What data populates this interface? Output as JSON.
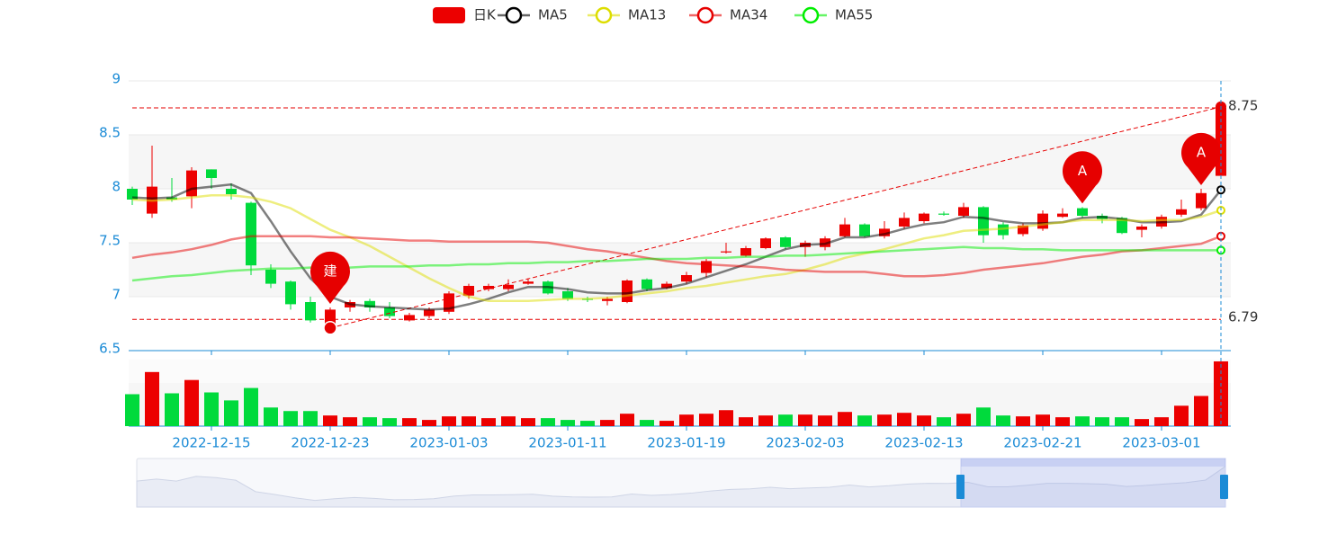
{
  "chart_data": {
    "type": "candlestick",
    "categories": [
      null,
      null,
      null,
      null,
      "2022-12-15",
      null,
      null,
      null,
      null,
      null,
      "2022-12-23",
      null,
      null,
      null,
      null,
      null,
      "2023-01-03",
      null,
      null,
      null,
      null,
      null,
      "2023-01-11",
      null,
      null,
      null,
      null,
      null,
      "2023-01-19",
      null,
      null,
      null,
      null,
      null,
      "2023-02-03",
      null,
      null,
      null,
      null,
      null,
      "2023-02-13",
      null,
      null,
      null,
      null,
      null,
      "2023-02-21",
      null,
      null,
      null,
      null,
      null,
      "2023-03-01",
      null,
      null,
      null
    ],
    "candles": {
      "name": "日K",
      "up_color": "#ec0000",
      "down_color": "#00da3c",
      "open": [
        8.0,
        7.77,
        7.92,
        7.93,
        8.18,
        8.0,
        7.87,
        7.25,
        7.14,
        6.95,
        6.71,
        6.9,
        6.96,
        6.9,
        6.78,
        6.82,
        6.86,
        7.01,
        7.07,
        7.07,
        7.12,
        7.14,
        7.05,
        6.98,
        6.96,
        6.95,
        7.16,
        7.08,
        7.14,
        7.22,
        7.41,
        7.38,
        7.45,
        7.55,
        7.46,
        7.46,
        7.56,
        7.67,
        7.56,
        7.65,
        7.7,
        7.77,
        7.75,
        7.83,
        7.67,
        7.58,
        7.63,
        7.74,
        7.82,
        7.75,
        7.73,
        7.62,
        7.65,
        7.76,
        7.82,
        8.12
      ],
      "close": [
        7.9,
        8.02,
        7.9,
        8.17,
        8.1,
        7.95,
        7.29,
        7.12,
        6.93,
        6.78,
        6.88,
        6.95,
        6.9,
        6.82,
        6.83,
        6.88,
        7.03,
        7.1,
        7.1,
        7.11,
        7.14,
        7.03,
        6.98,
        6.97,
        6.98,
        7.15,
        7.07,
        7.12,
        7.2,
        7.33,
        7.42,
        7.45,
        7.54,
        7.46,
        7.5,
        7.54,
        7.67,
        7.56,
        7.63,
        7.73,
        7.77,
        7.76,
        7.83,
        7.57,
        7.57,
        7.66,
        7.77,
        7.77,
        7.75,
        7.72,
        7.59,
        7.65,
        7.74,
        7.81,
        7.96,
        8.75
      ],
      "low": [
        7.85,
        7.73,
        7.88,
        7.82,
        8.0,
        7.9,
        7.2,
        7.08,
        6.88,
        6.76,
        6.71,
        6.86,
        6.86,
        6.8,
        6.77,
        6.8,
        6.84,
        6.98,
        7.05,
        7.05,
        7.11,
        7.02,
        6.96,
        6.95,
        6.92,
        6.94,
        7.05,
        7.07,
        7.12,
        7.18,
        7.4,
        7.37,
        7.44,
        7.44,
        7.37,
        7.43,
        7.55,
        7.55,
        7.54,
        7.63,
        7.68,
        7.75,
        7.73,
        7.5,
        7.53,
        7.56,
        7.61,
        7.73,
        7.73,
        7.68,
        7.58,
        7.55,
        7.63,
        7.74,
        7.8,
        8.1
      ],
      "high": [
        8.02,
        8.4,
        8.1,
        8.2,
        8.18,
        8.05,
        7.88,
        7.3,
        7.15,
        7.0,
        6.9,
        6.97,
        6.98,
        6.95,
        6.85,
        6.9,
        7.05,
        7.12,
        7.12,
        7.16,
        7.17,
        7.15,
        7.08,
        7.0,
        7.0,
        7.16,
        7.17,
        7.14,
        7.23,
        7.35,
        7.5,
        7.47,
        7.55,
        7.56,
        7.52,
        7.56,
        7.73,
        7.68,
        7.7,
        7.78,
        7.78,
        7.79,
        7.87,
        7.84,
        7.69,
        7.68,
        7.8,
        7.82,
        7.83,
        7.77,
        7.74,
        7.67,
        7.76,
        7.9,
        8.0,
        8.76
      ]
    },
    "series": [
      {
        "name": "MA5",
        "color": "#000000",
        "values": [
          7.92,
          7.91,
          7.92,
          8.0,
          8.02,
          8.04,
          7.96,
          7.7,
          7.42,
          7.17,
          7.0,
          6.93,
          6.91,
          6.9,
          6.89,
          6.88,
          6.89,
          6.93,
          6.98,
          7.04,
          7.09,
          7.09,
          7.07,
          7.04,
          7.03,
          7.03,
          7.06,
          7.08,
          7.12,
          7.18,
          7.24,
          7.3,
          7.37,
          7.44,
          7.48,
          7.49,
          7.55,
          7.55,
          7.58,
          7.63,
          7.67,
          7.69,
          7.74,
          7.73,
          7.7,
          7.68,
          7.68,
          7.69,
          7.73,
          7.74,
          7.72,
          7.69,
          7.69,
          7.7,
          7.76,
          7.99
        ]
      },
      {
        "name": "MA13",
        "color": "#dddd00",
        "values": [
          7.9,
          7.89,
          7.9,
          7.92,
          7.94,
          7.94,
          7.92,
          7.88,
          7.82,
          7.72,
          7.62,
          7.55,
          7.47,
          7.37,
          7.27,
          7.17,
          7.08,
          7.0,
          6.96,
          6.96,
          6.96,
          6.97,
          6.98,
          6.98,
          6.99,
          7.01,
          7.03,
          7.05,
          7.08,
          7.1,
          7.13,
          7.16,
          7.19,
          7.21,
          7.25,
          7.3,
          7.36,
          7.4,
          7.44,
          7.49,
          7.54,
          7.57,
          7.61,
          7.62,
          7.63,
          7.65,
          7.67,
          7.69,
          7.71,
          7.71,
          7.71,
          7.7,
          7.71,
          7.71,
          7.74,
          7.8
        ]
      },
      {
        "name": "MA34",
        "color": "#e60000",
        "values": [
          7.36,
          7.39,
          7.41,
          7.44,
          7.48,
          7.53,
          7.56,
          7.56,
          7.56,
          7.56,
          7.55,
          7.55,
          7.54,
          7.53,
          7.52,
          7.52,
          7.51,
          7.51,
          7.51,
          7.51,
          7.51,
          7.5,
          7.47,
          7.44,
          7.42,
          7.39,
          7.36,
          7.33,
          7.31,
          7.3,
          7.29,
          7.28,
          7.27,
          7.25,
          7.24,
          7.23,
          7.23,
          7.23,
          7.21,
          7.19,
          7.19,
          7.2,
          7.22,
          7.25,
          7.27,
          7.29,
          7.31,
          7.34,
          7.37,
          7.39,
          7.42,
          7.43,
          7.45,
          7.47,
          7.49,
          7.56
        ]
      },
      {
        "name": "MA55",
        "color": "#00ee00",
        "values": [
          7.15,
          7.17,
          7.19,
          7.2,
          7.22,
          7.24,
          7.25,
          7.26,
          7.26,
          7.27,
          7.27,
          7.27,
          7.28,
          7.28,
          7.28,
          7.29,
          7.29,
          7.3,
          7.3,
          7.31,
          7.31,
          7.32,
          7.32,
          7.33,
          7.33,
          7.34,
          7.35,
          7.35,
          7.35,
          7.36,
          7.36,
          7.37,
          7.37,
          7.38,
          7.38,
          7.39,
          7.4,
          7.41,
          7.42,
          7.43,
          7.44,
          7.45,
          7.46,
          7.45,
          7.45,
          7.44,
          7.44,
          7.43,
          7.43,
          7.43,
          7.43,
          7.43,
          7.43,
          7.43,
          7.43,
          7.43
        ]
      }
    ],
    "volume": {
      "ylim": [
        0,
        75
      ],
      "values": [
        36,
        61,
        37,
        52,
        38,
        29,
        43,
        21,
        17,
        17,
        12,
        10,
        10,
        9,
        9,
        7,
        11,
        11,
        9,
        11,
        9,
        9,
        7,
        6,
        7,
        14,
        7,
        6,
        13,
        14,
        18,
        10,
        12,
        13,
        13,
        12,
        16,
        12,
        13,
        15,
        12,
        10,
        14,
        21,
        12,
        11,
        13,
        10,
        11,
        10,
        10,
        8,
        10,
        23,
        34,
        73
      ]
    },
    "ylim": [
      6.5,
      9
    ],
    "yticks": [
      6.5,
      7,
      7.5,
      8,
      8.5,
      9
    ],
    "mark_lines": [
      8.75,
      6.79
    ],
    "mark_points": [
      {
        "index": 10,
        "label": "建"
      },
      {
        "index": 48,
        "label": "A"
      },
      {
        "index": 54,
        "label": "A"
      }
    ]
  }
}
